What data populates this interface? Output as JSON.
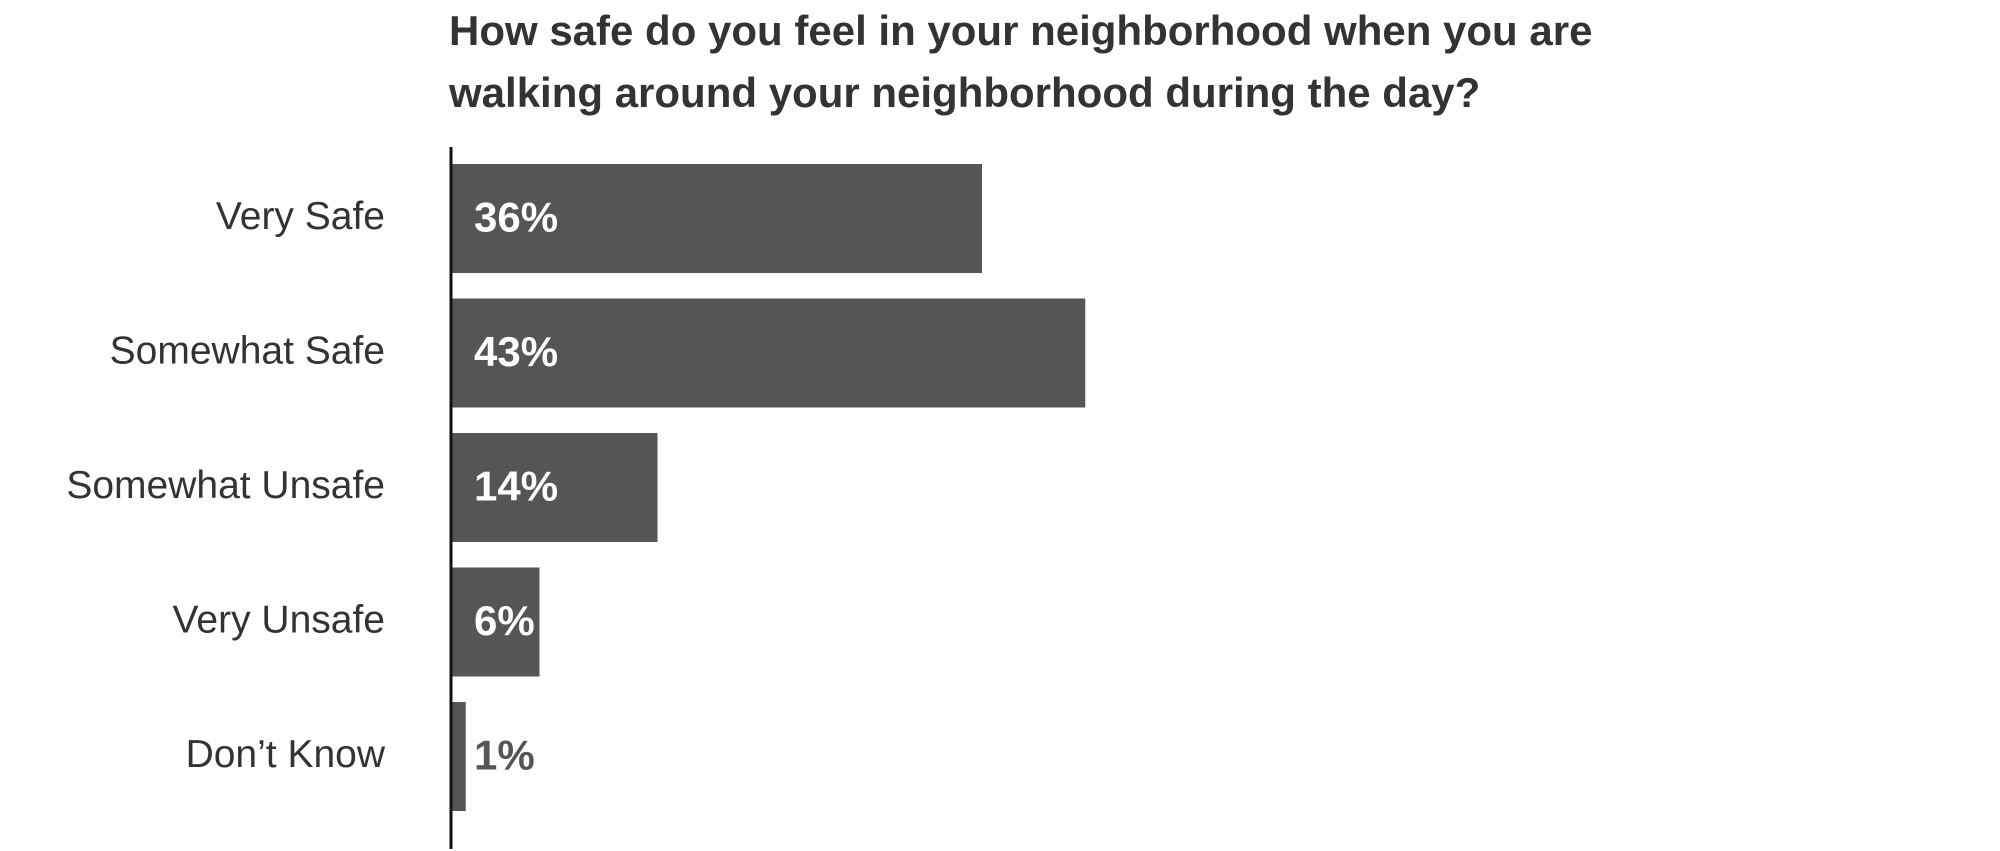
{
  "chart_data": {
    "type": "bar",
    "orientation": "horizontal",
    "title": "How safe do you feel in your neighborhood when you are walking around your neighborhood during the day?",
    "categories": [
      "Very Safe",
      "Somewhat Safe",
      "Somewhat Unsafe",
      "Very Unsafe",
      "Don’t Know"
    ],
    "values": [
      36,
      43,
      14,
      6,
      1
    ],
    "value_labels": [
      "36%",
      "43%",
      "14%",
      "6%",
      "1%"
    ],
    "color": "#555555",
    "xlim": [
      0,
      100
    ]
  }
}
